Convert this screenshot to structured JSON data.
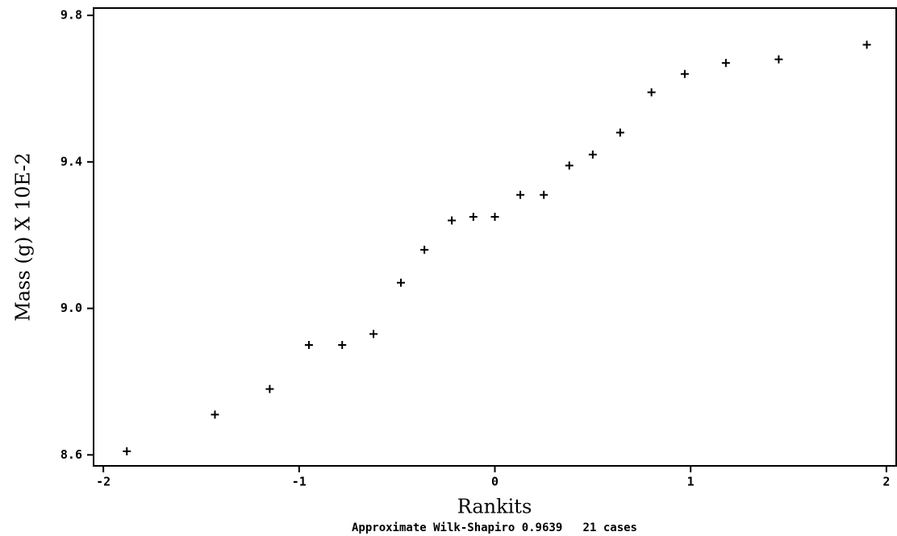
{
  "chart_data": {
    "type": "scatter",
    "x_label": "Rankits",
    "y_label": "Mass (g) X 10E-2",
    "annotation": "Approximate Wilk-Shapiro 0.9639   21 cases",
    "x": [
      -1.88,
      -1.43,
      -1.15,
      -0.95,
      -0.78,
      -0.62,
      -0.48,
      -0.36,
      -0.22,
      -0.11,
      0.0,
      0.13,
      0.25,
      0.38,
      0.5,
      0.64,
      0.8,
      0.97,
      1.18,
      1.45,
      1.9
    ],
    "values": [
      8.61,
      8.71,
      8.78,
      8.9,
      8.9,
      8.93,
      9.07,
      9.16,
      9.24,
      9.25,
      9.25,
      9.31,
      9.31,
      9.39,
      9.42,
      9.48,
      9.59,
      9.64,
      9.67,
      9.68,
      9.72
    ],
    "color": "#000000",
    "xlim": [
      -2.05,
      2.05
    ],
    "xticks": [
      -2,
      -1,
      0,
      1,
      2
    ],
    "ylim": [
      8.57,
      9.82
    ],
    "yticks": [
      8.6,
      {
        "value": 9,
        "label": "9.0"
      },
      9.4,
      9.8
    ]
  }
}
